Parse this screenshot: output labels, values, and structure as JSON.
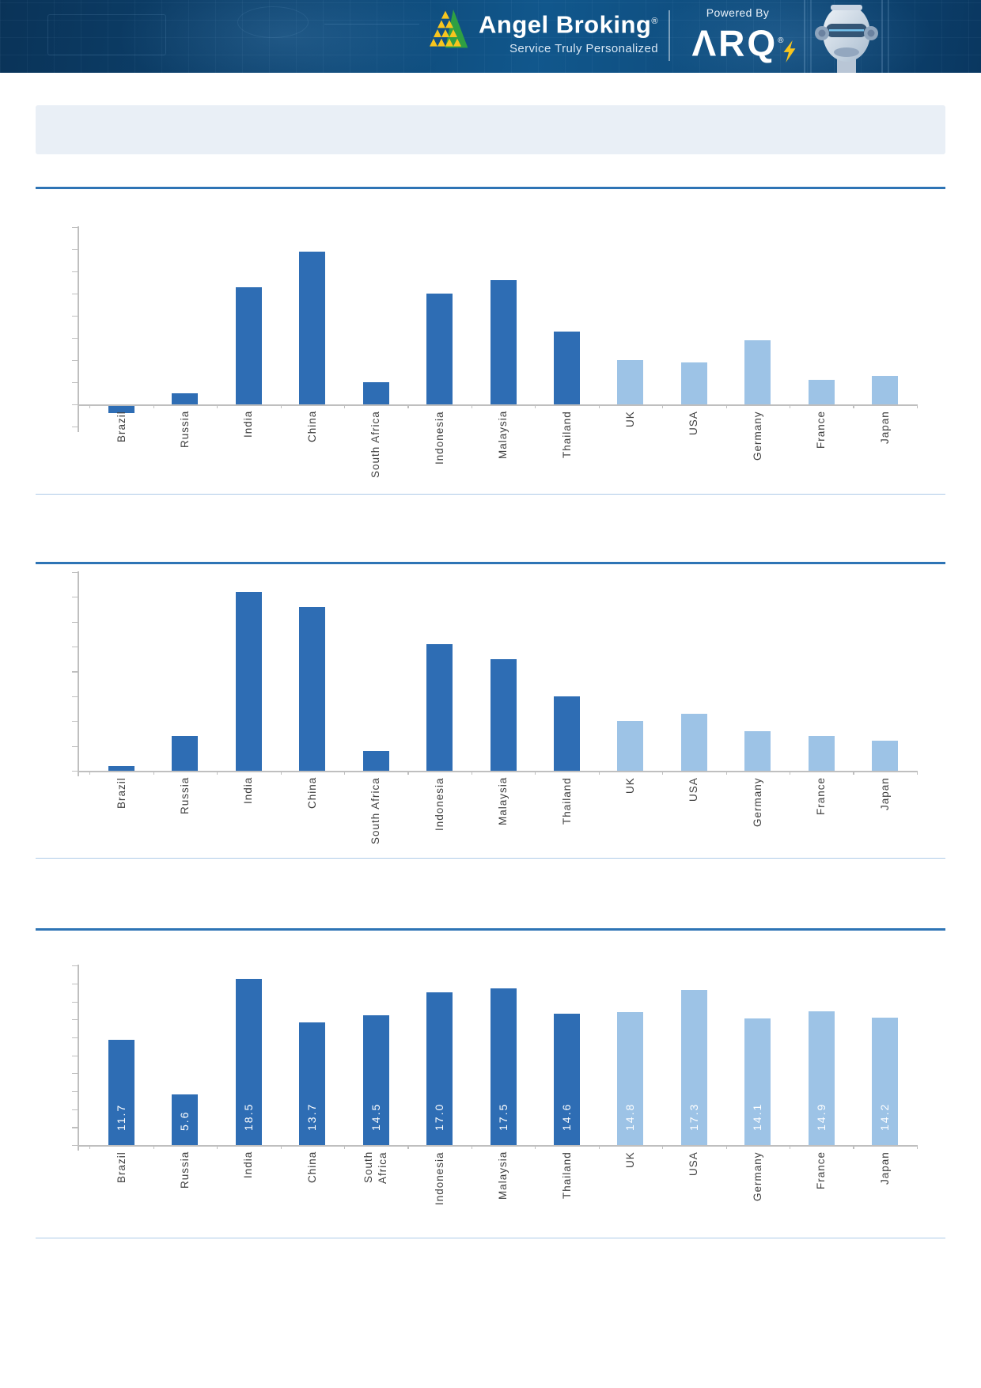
{
  "header": {
    "brand": "Angel Broking",
    "brand_reg": "®",
    "tagline": "Service Truly Personalized",
    "powered_by": "Powered By",
    "product": "ARQ",
    "product_reg": "®"
  },
  "title_bar": {
    "text": ""
  },
  "chart_data": [
    {
      "type": "bar",
      "title": "",
      "categories": [
        "Brazil",
        "Russia",
        "India",
        "China",
        "South Africa",
        "Indonesia",
        "Malaysia",
        "Thailand",
        "UK",
        "USA",
        "Germany",
        "France",
        "Japan"
      ],
      "values": [
        -0.4,
        0.5,
        5.3,
        6.9,
        1.0,
        5.0,
        5.6,
        3.3,
        2.0,
        1.9,
        2.9,
        1.1,
        1.3
      ],
      "ylim": [
        -1,
        8
      ],
      "y_tick_step": 1,
      "y_tick_labels_shown": false,
      "grid": false,
      "legend": null,
      "value_labels_shown": false,
      "bar_color_dark": "#2e6db4",
      "bar_color_light": "#9dc3e6",
      "light_color_from_index": 8
    },
    {
      "type": "bar",
      "title": "",
      "categories": [
        "Brazil",
        "Russia",
        "India",
        "China",
        "South Africa",
        "Indonesia",
        "Malaysia",
        "Thailand",
        "UK",
        "USA",
        "Germany",
        "France",
        "Japan"
      ],
      "values": [
        0.2,
        1.4,
        7.2,
        6.6,
        0.8,
        5.1,
        4.5,
        3.0,
        2.0,
        2.3,
        1.6,
        1.4,
        1.2
      ],
      "ylim": [
        0,
        8
      ],
      "y_tick_step": 1,
      "y_tick_labels_shown": false,
      "grid": false,
      "legend": null,
      "value_labels_shown": false,
      "bar_color_dark": "#2e6db4",
      "bar_color_light": "#9dc3e6",
      "light_color_from_index": 8
    },
    {
      "type": "bar",
      "title": "",
      "categories": [
        "Brazil",
        "Russia",
        "India",
        "China",
        "South Africa",
        "Indonesia",
        "Malaysia",
        "Thailand",
        "UK",
        "USA",
        "Germany",
        "France",
        "Japan"
      ],
      "categories_display": [
        "Brazil",
        "Russia",
        "India",
        "China",
        "South\nAfrica",
        "Indonesia",
        "Malaysia",
        "Thailand",
        "UK",
        "USA",
        "Germany",
        "France",
        "Japan"
      ],
      "values": [
        11.7,
        5.6,
        18.5,
        13.7,
        14.5,
        17.0,
        17.5,
        14.6,
        14.8,
        17.3,
        14.1,
        14.9,
        14.2
      ],
      "value_labels": [
        "11.7",
        "5.6",
        "18.5",
        "13.7",
        "14.5",
        "17.0",
        "17.5",
        "14.6",
        "14.8",
        "17.3",
        "14.1",
        "14.9",
        "14.2"
      ],
      "ylim": [
        0,
        20
      ],
      "y_tick_step": 2,
      "y_tick_labels_shown": false,
      "grid": false,
      "legend": null,
      "value_labels_shown": true,
      "bar_color_dark": "#2e6db4",
      "bar_color_light": "#9dc3e6",
      "light_color_from_index": 8
    }
  ],
  "colors": {
    "banner_navy": "#0d4471",
    "rule_heavy": "#2e74b5",
    "rule_thin": "#aecbe8",
    "axis": "#bfbfbf",
    "label_text": "#404040",
    "logo_yellow": "#f7c51e",
    "logo_green": "#2fa043",
    "title_box": "#e9eff6"
  }
}
